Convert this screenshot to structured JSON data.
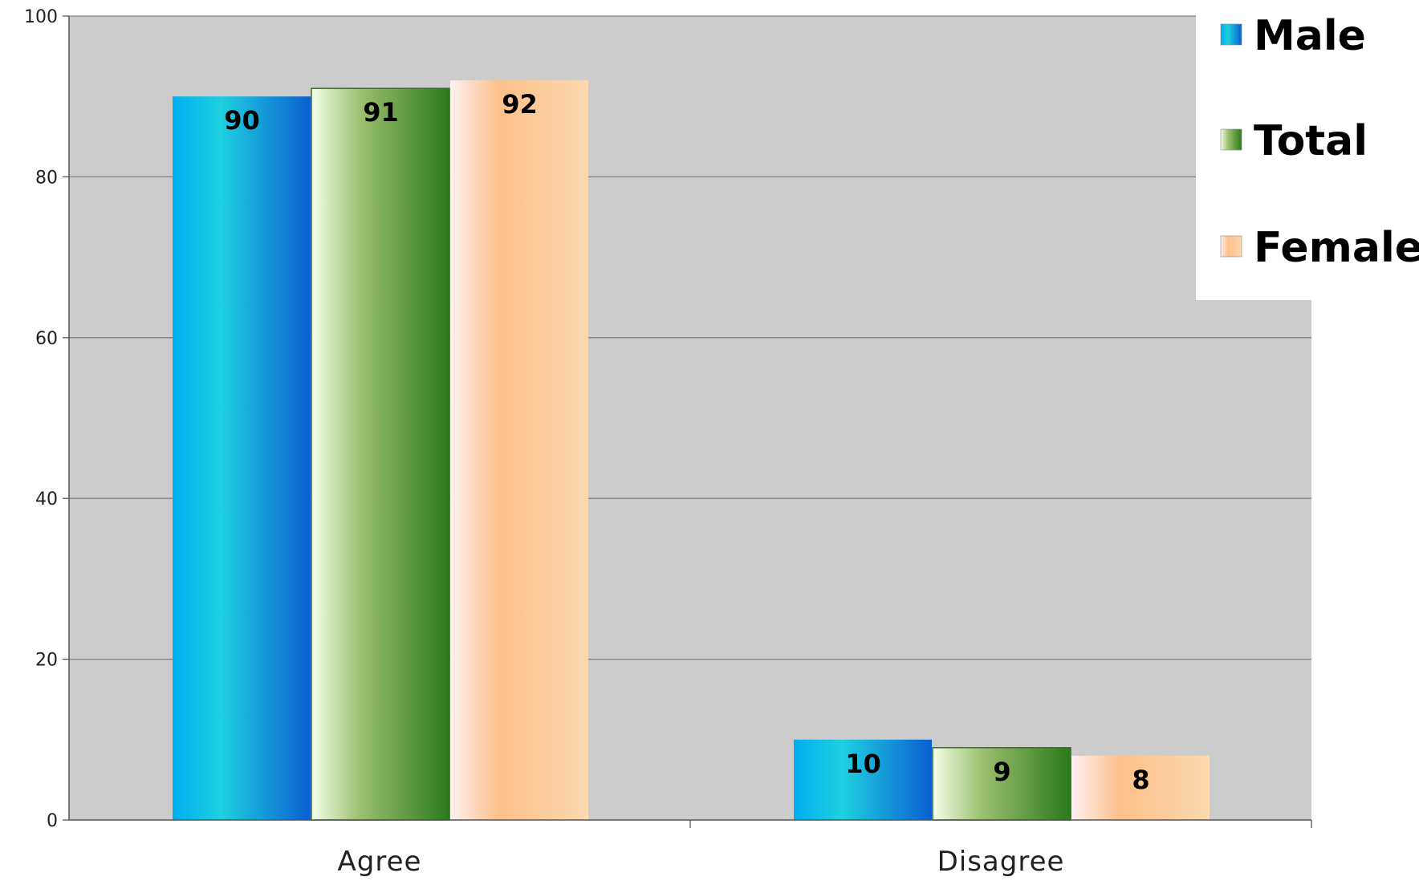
{
  "chart_data": {
    "type": "bar",
    "categories": [
      "Agree",
      "Disagree"
    ],
    "series": [
      {
        "name": "Male",
        "values": [
          90,
          10
        ]
      },
      {
        "name": "Total",
        "values": [
          91,
          9
        ]
      },
      {
        "name": "Female",
        "values": [
          92,
          8
        ]
      }
    ],
    "ylim": [
      0,
      100
    ],
    "yticks": [
      "0",
      "20",
      "40",
      "60",
      "80",
      "100"
    ],
    "data_labels": true,
    "grid": true,
    "legend_position": "top-right",
    "colors": {
      "Male": [
        "#00aeef",
        "#1fd0e0",
        "#0a5fd0"
      ],
      "Total": [
        "#f5ffe8",
        "#9cc070",
        "#2a7a1a"
      ],
      "Female": [
        "#fff0f2",
        "#fcc08a",
        "#fcd9ae"
      ],
      "plot_background": "#cccccc",
      "gridline": "#808080"
    }
  }
}
